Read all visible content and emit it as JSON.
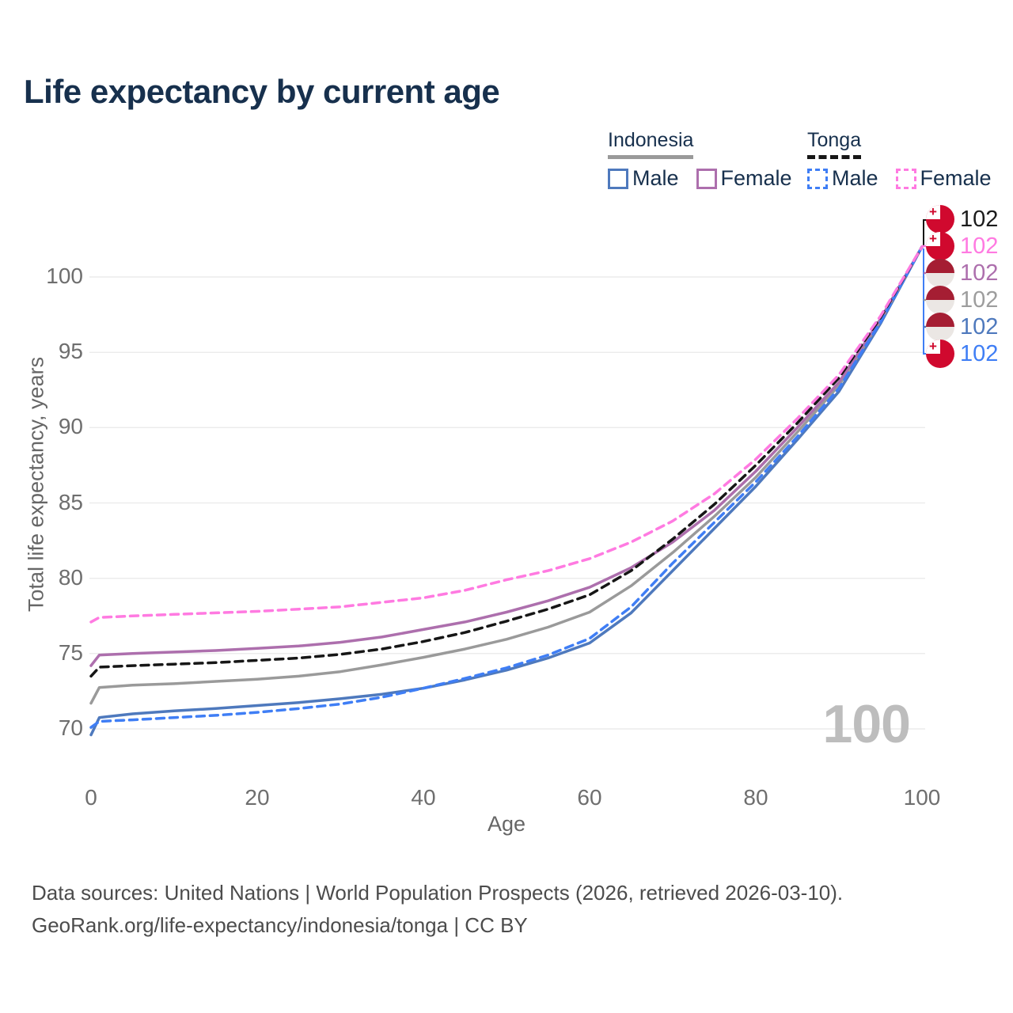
{
  "title": "Life expectancy by current age",
  "legend": {
    "groups": [
      {
        "country": "Indonesia",
        "line_style": "solid",
        "items": [
          {
            "label": "Male"
          },
          {
            "label": "Female"
          }
        ]
      },
      {
        "country": "Tonga",
        "line_style": "dashed",
        "items": [
          {
            "label": "Male"
          },
          {
            "label": "Female"
          }
        ]
      }
    ]
  },
  "palette": {
    "indonesia_male": "#4e79bd",
    "indonesia_female": "#ad6fad",
    "indonesia_all": "#9a9a9a",
    "tonga_male": "#3f7ef5",
    "tonga_female": "#ff7ae1",
    "tonga_all": "#161616",
    "gridline": "#ececec",
    "title_navy": "#17304d"
  },
  "chart_data": {
    "type": "line",
    "title": "Life expectancy by current age",
    "xlabel": "Age",
    "ylabel": "Total life expectancy, years",
    "xticks": [
      0,
      20,
      40,
      60,
      80,
      100
    ],
    "yticks": [
      70,
      75,
      80,
      85,
      90,
      95,
      100
    ],
    "xlim": [
      0,
      100
    ],
    "ylim": [
      67.5,
      103
    ],
    "grid": "horizontal",
    "legend_position": "top-right",
    "ages": [
      0,
      1,
      5,
      10,
      15,
      20,
      25,
      30,
      35,
      40,
      45,
      50,
      55,
      60,
      65,
      70,
      75,
      80,
      85,
      90,
      95,
      100
    ],
    "series": [
      {
        "name": "Indonesia Male",
        "country": "Indonesia",
        "sex": "Male",
        "color": "indonesia_male",
        "dash": false,
        "values": [
          69.6,
          70.75,
          71.0,
          71.2,
          71.35,
          71.55,
          71.75,
          72.0,
          72.3,
          72.7,
          73.25,
          73.9,
          74.7,
          75.7,
          77.7,
          80.5,
          83.3,
          86.1,
          89.2,
          92.4,
          96.9,
          102
        ]
      },
      {
        "name": "Indonesia All",
        "country": "Indonesia",
        "sex": "All",
        "color": "indonesia_all",
        "dash": false,
        "values": [
          71.7,
          72.75,
          72.9,
          73.0,
          73.15,
          73.3,
          73.5,
          73.8,
          74.25,
          74.75,
          75.3,
          75.95,
          76.75,
          77.75,
          79.5,
          81.7,
          84.1,
          86.7,
          89.7,
          92.8,
          97.1,
          102
        ]
      },
      {
        "name": "Indonesia Female",
        "country": "Indonesia",
        "sex": "Female",
        "color": "indonesia_female",
        "dash": false,
        "values": [
          74.2,
          74.9,
          75.0,
          75.1,
          75.2,
          75.35,
          75.5,
          75.75,
          76.1,
          76.6,
          77.1,
          77.75,
          78.5,
          79.4,
          80.7,
          82.4,
          84.5,
          87.1,
          90.0,
          93.0,
          97.2,
          102
        ]
      },
      {
        "name": "Tonga Male",
        "country": "Tonga",
        "sex": "Male",
        "color": "tonga_male",
        "dash": true,
        "values": [
          70.1,
          70.5,
          70.6,
          70.75,
          70.9,
          71.1,
          71.35,
          71.65,
          72.1,
          72.7,
          73.35,
          74.05,
          74.9,
          76.0,
          78.1,
          81.0,
          83.7,
          86.4,
          89.4,
          92.6,
          97.0,
          102
        ]
      },
      {
        "name": "Tonga All",
        "country": "Tonga",
        "sex": "All",
        "color": "tonga_all",
        "dash": true,
        "values": [
          73.5,
          74.1,
          74.2,
          74.3,
          74.4,
          74.55,
          74.7,
          74.95,
          75.3,
          75.8,
          76.4,
          77.15,
          77.95,
          78.9,
          80.5,
          82.6,
          84.9,
          87.5,
          90.3,
          93.3,
          97.3,
          102
        ]
      },
      {
        "name": "Tonga Female",
        "country": "Tonga",
        "sex": "Female",
        "color": "tonga_female",
        "dash": true,
        "values": [
          77.1,
          77.4,
          77.5,
          77.6,
          77.7,
          77.8,
          77.95,
          78.1,
          78.4,
          78.7,
          79.2,
          79.9,
          80.5,
          81.3,
          82.4,
          83.8,
          85.6,
          87.9,
          90.6,
          93.5,
          97.4,
          102
        ]
      }
    ]
  },
  "right_labels": [
    {
      "flag": "tonga",
      "value": "102",
      "color_hex": "#1c1c1c",
      "series": "Tonga All"
    },
    {
      "flag": "tonga",
      "value": "102",
      "color_hex": "#ff7ae1",
      "series": "Tonga Female"
    },
    {
      "flag": "indonesia",
      "value": "102",
      "color_hex": "#ad6fad",
      "series": "Indonesia Female"
    },
    {
      "flag": "indonesia",
      "value": "102",
      "color_hex": "#9d9d9d",
      "series": "Indonesia All"
    },
    {
      "flag": "indonesia",
      "value": "102",
      "color_hex": "#4e79bd",
      "series": "Indonesia Male"
    },
    {
      "flag": "tonga",
      "value": "102",
      "color_hex": "#3f7ef5",
      "series": "Tonga Male"
    }
  ],
  "watermark": "100",
  "footer": {
    "line1": "Data sources: United Nations | World Population Prospects (2026, retrieved 2026-03-10).",
    "line2": "GeoRank.org/life-expectancy/indonesia/tonga | CC BY"
  }
}
